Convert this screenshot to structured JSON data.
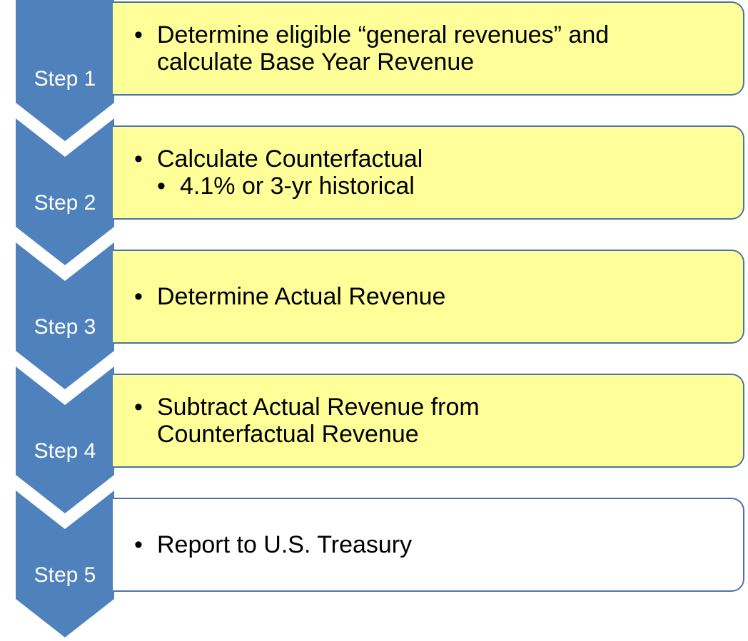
{
  "steps": [
    {
      "label": "Step 1",
      "items": [
        {
          "lines": [
            "Determine eligible “general revenues” and",
            "calculate Base Year Revenue"
          ]
        }
      ]
    },
    {
      "label": "Step 2",
      "items": [
        {
          "lines": [
            "Calculate Counterfactual"
          ],
          "subitems": [
            {
              "lines": [
                "4.1% or 3-yr historical"
              ]
            }
          ]
        }
      ]
    },
    {
      "label": "Step 3",
      "items": [
        {
          "lines": [
            "Determine Actual Revenue"
          ]
        }
      ]
    },
    {
      "label": "Step 4",
      "items": [
        {
          "lines": [
            "Subtract Actual Revenue from",
            "Counterfactual Revenue"
          ]
        }
      ]
    },
    {
      "label": "Step 5",
      "items": [
        {
          "lines": [
            "Report to U.S. Treasury"
          ]
        }
      ]
    }
  ]
}
